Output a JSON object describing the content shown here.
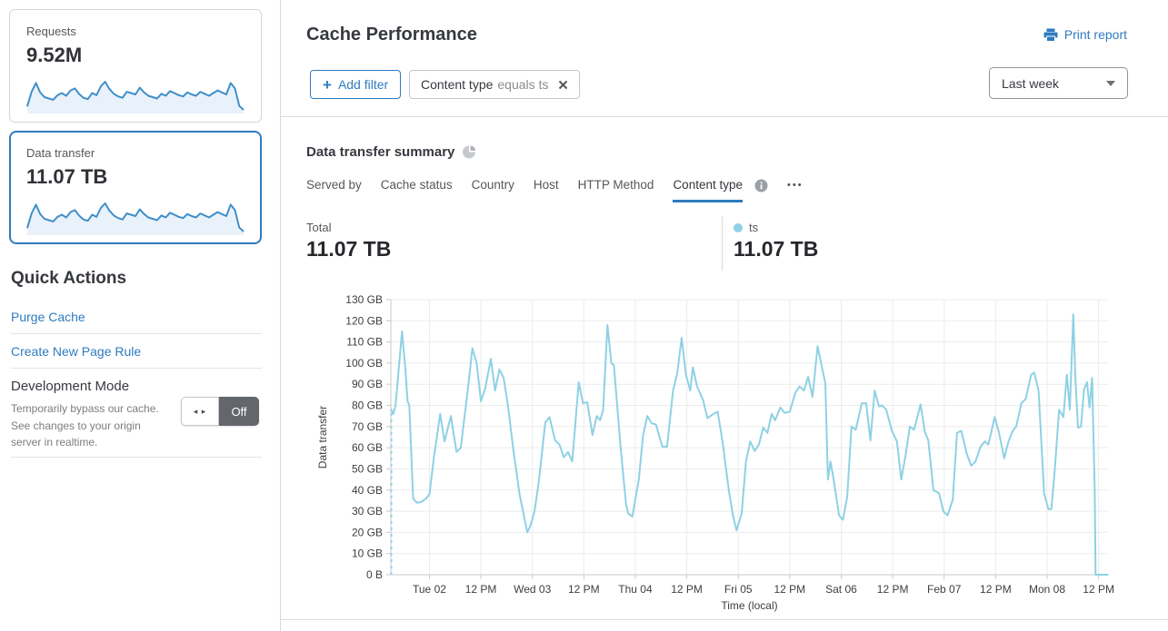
{
  "colors": {
    "accent_blue": "#2f7bbf",
    "chart_line": "#8ed1e4",
    "sparkline_stroke": "#3e8ec9",
    "sparkline_fill": "#e9f1fa",
    "toggle_off_bg": "#63676c",
    "grid": "#ececec"
  },
  "sidebar": {
    "cards": [
      {
        "label": "Requests",
        "value": "9.52M",
        "selected": false
      },
      {
        "label": "Data transfer",
        "value": "11.07 TB",
        "selected": true
      }
    ],
    "sparkline_values": [
      18,
      62,
      88,
      60,
      46,
      42,
      38,
      52,
      58,
      50,
      66,
      72,
      55,
      44,
      40,
      58,
      52,
      78,
      92,
      70,
      56,
      48,
      44,
      62,
      58,
      54,
      74,
      60,
      50,
      46,
      42,
      56,
      50,
      64,
      58,
      52,
      48,
      60,
      54,
      50,
      62,
      56,
      50,
      58,
      66,
      60,
      54,
      88,
      72,
      20,
      8
    ],
    "quick_actions": {
      "title": "Quick Actions",
      "links": [
        "Purge Cache",
        "Create New Page Rule"
      ],
      "dev_mode": {
        "title": "Development Mode",
        "description": "Temporarily bypass our cache. See changes to your origin server in realtime.",
        "toggle_state": "Off",
        "toggle_arrows": "◂ ▸"
      }
    }
  },
  "header": {
    "title": "Cache Performance",
    "print_label": "Print report"
  },
  "filters": {
    "add_label": "Add filter",
    "add_plus": "+",
    "chip": {
      "field": "Content type",
      "condition": "equals ts"
    },
    "range": "Last week"
  },
  "summary": {
    "title": "Data transfer summary",
    "tabs": [
      {
        "label": "Served by",
        "active": false
      },
      {
        "label": "Cache status",
        "active": false
      },
      {
        "label": "Country",
        "active": false
      },
      {
        "label": "Host",
        "active": false
      },
      {
        "label": "HTTP Method",
        "active": false
      },
      {
        "label": "Content type",
        "active": true
      }
    ],
    "more_dots": "•••",
    "total_label": "Total",
    "total_value": "11.07 TB",
    "legend": {
      "series": "ts",
      "value": "11.07 TB",
      "color": "#8ed1e4"
    }
  },
  "chart_data": {
    "type": "line",
    "title": "Data transfer summary",
    "xlabel": "Time (local)",
    "ylabel": "Data transfer",
    "y_unit": "GB",
    "ylim": [
      0,
      130
    ],
    "grid": true,
    "y_ticks": [
      "0 B",
      "10 GB",
      "20 GB",
      "30 GB",
      "40 GB",
      "50 GB",
      "60 GB",
      "70 GB",
      "80 GB",
      "90 GB",
      "100 GB",
      "110 GB",
      "120 GB",
      "130 GB"
    ],
    "x_domain": [
      -9,
      158.2
    ],
    "x_ticks": [
      {
        "t": 0,
        "label": "Tue 02"
      },
      {
        "t": 12,
        "label": "12 PM"
      },
      {
        "t": 24,
        "label": "Wed 03"
      },
      {
        "t": 36,
        "label": "12 PM"
      },
      {
        "t": 48,
        "label": "Thu 04"
      },
      {
        "t": 60,
        "label": "12 PM"
      },
      {
        "t": 72,
        "label": "Fri 05"
      },
      {
        "t": 84,
        "label": "12 PM"
      },
      {
        "t": 96,
        "label": "Sat 06"
      },
      {
        "t": 108,
        "label": "12 PM"
      },
      {
        "t": 120,
        "label": "Feb 07"
      },
      {
        "t": 132,
        "label": "12 PM"
      },
      {
        "t": 144,
        "label": "Mon 08"
      },
      {
        "t": 156,
        "label": "12 PM"
      }
    ],
    "leading_dashed": [
      [
        -8.9,
        0
      ],
      [
        -8.9,
        78
      ]
    ],
    "series": [
      {
        "name": "ts",
        "color": "#8ed1e4",
        "points": [
          [
            -8.9,
            78
          ],
          [
            -8.4,
            76
          ],
          [
            -7.9,
            80
          ],
          [
            -6.4,
            115
          ],
          [
            -5.6,
            97
          ],
          [
            -5.1,
            82
          ],
          [
            -4.7,
            80
          ],
          [
            -3.8,
            36
          ],
          [
            -2.9,
            34
          ],
          [
            -1.8,
            34.5
          ],
          [
            -0.8,
            36
          ],
          [
            0,
            38
          ],
          [
            1,
            55
          ],
          [
            2.5,
            76
          ],
          [
            3.5,
            63
          ],
          [
            5,
            75
          ],
          [
            6.3,
            58
          ],
          [
            7.3,
            60
          ],
          [
            8.8,
            85
          ],
          [
            10,
            107
          ],
          [
            11,
            100
          ],
          [
            12,
            82
          ],
          [
            13,
            88
          ],
          [
            14.3,
            102
          ],
          [
            15.3,
            87
          ],
          [
            16.3,
            97
          ],
          [
            17.3,
            93
          ],
          [
            18.3,
            80
          ],
          [
            19.5,
            60
          ],
          [
            21,
            38
          ],
          [
            22,
            28
          ],
          [
            22.8,
            20
          ],
          [
            23.5,
            23
          ],
          [
            24.5,
            30
          ],
          [
            25.5,
            44
          ],
          [
            27,
            72
          ],
          [
            28,
            74.5
          ],
          [
            29.3,
            63.5
          ],
          [
            30.3,
            61.5
          ],
          [
            31.3,
            55.5
          ],
          [
            32.3,
            58
          ],
          [
            33.3,
            53.5
          ],
          [
            34.8,
            91
          ],
          [
            35.8,
            81
          ],
          [
            36.8,
            81.5
          ],
          [
            38,
            66
          ],
          [
            39,
            75
          ],
          [
            39.8,
            73
          ],
          [
            40.5,
            78
          ],
          [
            41.5,
            118
          ],
          [
            42.4,
            100
          ],
          [
            43,
            99
          ],
          [
            44.5,
            61.5
          ],
          [
            45.8,
            34
          ],
          [
            46.3,
            29
          ],
          [
            47.3,
            27.5
          ],
          [
            48.8,
            45
          ],
          [
            49.8,
            66
          ],
          [
            50.8,
            75
          ],
          [
            51.8,
            71.5
          ],
          [
            52.8,
            71
          ],
          [
            54.3,
            60.5
          ],
          [
            55.4,
            60.5
          ],
          [
            56.8,
            87
          ],
          [
            57.8,
            95.5
          ],
          [
            58.8,
            112
          ],
          [
            59.8,
            94.5
          ],
          [
            60.8,
            87
          ],
          [
            61.4,
            98
          ],
          [
            62.4,
            89
          ],
          [
            63.8,
            82.5
          ],
          [
            64.8,
            74
          ],
          [
            66.2,
            76
          ],
          [
            67.2,
            77
          ],
          [
            68.4,
            62
          ],
          [
            69.8,
            40
          ],
          [
            70.8,
            27.5
          ],
          [
            71.6,
            21
          ],
          [
            72.8,
            29
          ],
          [
            73.8,
            53.5
          ],
          [
            74.8,
            63
          ],
          [
            75.8,
            58.5
          ],
          [
            76.8,
            61.5
          ],
          [
            77.8,
            69.5
          ],
          [
            78.8,
            67
          ],
          [
            79.8,
            76
          ],
          [
            80.6,
            73
          ],
          [
            81.8,
            79
          ],
          [
            82.8,
            76.5
          ],
          [
            84,
            77
          ],
          [
            85.3,
            86
          ],
          [
            86.3,
            89
          ],
          [
            87.3,
            87
          ],
          [
            88.3,
            93.5
          ],
          [
            89.3,
            84
          ],
          [
            90.5,
            108
          ],
          [
            91.3,
            100
          ],
          [
            92.3,
            90.5
          ],
          [
            92.9,
            45
          ],
          [
            93.5,
            53.5
          ],
          [
            94.3,
            44
          ],
          [
            95.5,
            28
          ],
          [
            96.4,
            26
          ],
          [
            97.4,
            37
          ],
          [
            98.4,
            70
          ],
          [
            99.4,
            68.5
          ],
          [
            100.8,
            81
          ],
          [
            101.8,
            81
          ],
          [
            102.8,
            63.5
          ],
          [
            103.8,
            87
          ],
          [
            104.8,
            79.5
          ],
          [
            105.5,
            80
          ],
          [
            106.5,
            78
          ],
          [
            107.8,
            68
          ],
          [
            109,
            63
          ],
          [
            110,
            45
          ],
          [
            111,
            56.5
          ],
          [
            112,
            70
          ],
          [
            113,
            68.5
          ],
          [
            114.5,
            80.5
          ],
          [
            115.5,
            67.5
          ],
          [
            116.3,
            63.5
          ],
          [
            117.5,
            40
          ],
          [
            118.8,
            38.5
          ],
          [
            119.8,
            30
          ],
          [
            120.8,
            28
          ],
          [
            122,
            35.5
          ],
          [
            123,
            67
          ],
          [
            124,
            68
          ],
          [
            125.3,
            57
          ],
          [
            126.3,
            51.5
          ],
          [
            127.3,
            53.5
          ],
          [
            128.5,
            60.5
          ],
          [
            129.5,
            63
          ],
          [
            130.3,
            61.5
          ],
          [
            131.8,
            74.5
          ],
          [
            132.8,
            67
          ],
          [
            134,
            55
          ],
          [
            135,
            63
          ],
          [
            136,
            68
          ],
          [
            136.8,
            70
          ],
          [
            138,
            81
          ],
          [
            139,
            83
          ],
          [
            140.3,
            94.5
          ],
          [
            141,
            95.5
          ],
          [
            142,
            87
          ],
          [
            143.3,
            38.5
          ],
          [
            144.3,
            31
          ],
          [
            145,
            31
          ],
          [
            145.8,
            50
          ],
          [
            146.8,
            78
          ],
          [
            147.8,
            74.5
          ],
          [
            148.6,
            94.5
          ],
          [
            149.3,
            78
          ],
          [
            150.1,
            123
          ],
          [
            150.6,
            93
          ],
          [
            151.2,
            69.5
          ],
          [
            151.9,
            70
          ],
          [
            152.6,
            87.5
          ],
          [
            153.3,
            91
          ],
          [
            153.9,
            79
          ],
          [
            154.5,
            93
          ],
          [
            155.1,
            40
          ],
          [
            155.3,
            0
          ],
          [
            158.1,
            0
          ]
        ]
      }
    ]
  }
}
